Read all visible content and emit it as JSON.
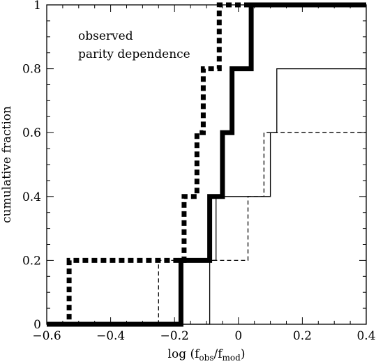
{
  "chart_data": {
    "type": "line",
    "title": "",
    "xlabel": "log (f_obs/f_mod)",
    "xlabel_parts": {
      "prefix": "log (f",
      "sub1": "obs",
      "slash": "/f",
      "sub2": "mod",
      "suffix": ")"
    },
    "ylabel": "cumulative fraction",
    "xlim": [
      -0.6,
      0.4
    ],
    "ylim": [
      0,
      1
    ],
    "xticks": [
      -0.6,
      -0.4,
      -0.2,
      0,
      0.2,
      0.4
    ],
    "xtick_labels": [
      "−0.6",
      "−0.4",
      "−0.2",
      "0",
      "0.2",
      "0.4"
    ],
    "yticks": [
      0,
      0.2,
      0.4,
      0.6,
      0.8,
      1
    ],
    "ytick_labels": [
      "0",
      "0.2",
      "0.4",
      "0.6",
      "0.8",
      "1"
    ],
    "grid": false,
    "annotations": [
      "observed",
      "parity dependence"
    ],
    "series": [
      {
        "style": "thick-dotted",
        "color": "#000000",
        "x": [
          -0.6,
          -0.53,
          -0.53,
          -0.17,
          -0.17,
          -0.13,
          -0.13,
          -0.11,
          -0.11,
          -0.06,
          -0.06,
          0.08,
          0.08,
          0.4
        ],
        "y": [
          0,
          0,
          0.2,
          0.2,
          0.4,
          0.4,
          0.6,
          0.6,
          0.8,
          0.8,
          1,
          1,
          1,
          1
        ]
      },
      {
        "style": "thick-solid",
        "color": "#000000",
        "x": [
          -0.6,
          -0.18,
          -0.18,
          -0.09,
          -0.09,
          -0.05,
          -0.05,
          -0.02,
          -0.02,
          0.04,
          0.04,
          0.17,
          0.17,
          0.4
        ],
        "y": [
          0,
          0,
          0.2,
          0.2,
          0.4,
          0.4,
          0.6,
          0.6,
          0.8,
          0.8,
          1,
          1,
          1,
          1
        ]
      },
      {
        "style": "thin-solid",
        "color": "#000000",
        "x": [
          -0.6,
          -0.09,
          -0.09,
          -0.07,
          -0.07,
          0.1,
          0.1,
          0.12,
          0.12,
          0.4
        ],
        "y": [
          0,
          0,
          0.2,
          0.2,
          0.4,
          0.4,
          0.6,
          0.6,
          0.8,
          0.8
        ]
      },
      {
        "style": "thin-dashed",
        "color": "#000000",
        "x": [
          -0.6,
          -0.25,
          -0.25,
          0.03,
          0.03,
          0.08,
          0.08,
          0.4
        ],
        "y": [
          0,
          0,
          0.2,
          0.2,
          0.4,
          0.4,
          0.6,
          0.6
        ]
      }
    ]
  }
}
